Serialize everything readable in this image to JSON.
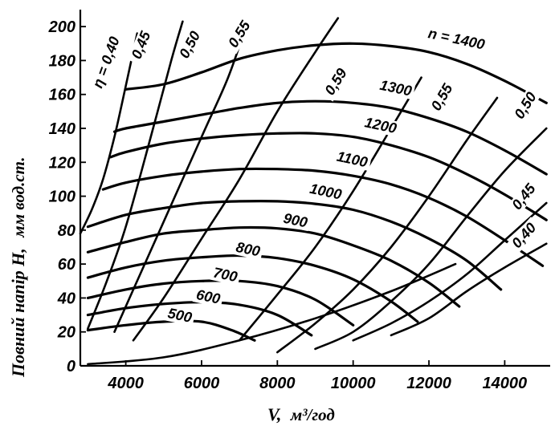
{
  "chart_data": {
    "type": "line",
    "title": "",
    "ylabel": "Повний напір H,",
    "ylabel_unit": "мм вод.ст.",
    "xlabel": "V,",
    "xlabel_unit": "м³/год",
    "xlim": [
      2800,
      15200
    ],
    "ylim": [
      0,
      210
    ],
    "x_ticks": [
      4000,
      6000,
      8000,
      10000,
      12000,
      14000
    ],
    "x_tick_labels": [
      "4000",
      "6000",
      "8000",
      "10000",
      "12000",
      "14000"
    ],
    "y_ticks": [
      0,
      20,
      40,
      60,
      80,
      100,
      120,
      140,
      160,
      180,
      200
    ],
    "y_tick_labels": [
      "0",
      "20",
      "40",
      "60",
      "80",
      "100",
      "120",
      "140",
      "160",
      "180",
      "200"
    ],
    "grid": false,
    "speed_curves": [
      {
        "label": "500",
        "points": [
          [
            3000,
            21
          ],
          [
            4000,
            24
          ],
          [
            5000,
            26
          ],
          [
            6000,
            26
          ],
          [
            6800,
            21
          ],
          [
            7400,
            15
          ]
        ],
        "label_at": [
          5400,
          27
        ]
      },
      {
        "label": "600",
        "points": [
          [
            3000,
            30
          ],
          [
            4000,
            34
          ],
          [
            5000,
            36.5
          ],
          [
            6000,
            37.5
          ],
          [
            7000,
            36
          ],
          [
            8000,
            30
          ],
          [
            8900,
            18
          ]
        ],
        "label_at": [
          6150,
          38
        ]
      },
      {
        "label": "700",
        "points": [
          [
            3000,
            40
          ],
          [
            4000,
            45
          ],
          [
            5000,
            48.5
          ],
          [
            6000,
            50
          ],
          [
            7000,
            50
          ],
          [
            8000,
            47
          ],
          [
            9000,
            39
          ],
          [
            10000,
            24
          ]
        ],
        "label_at": [
          6600,
          51
        ]
      },
      {
        "label": "800",
        "points": [
          [
            3000,
            52
          ],
          [
            4000,
            58
          ],
          [
            5000,
            62
          ],
          [
            6000,
            64
          ],
          [
            7000,
            65
          ],
          [
            8000,
            63.5
          ],
          [
            9000,
            59
          ],
          [
            10000,
            51
          ],
          [
            11000,
            38
          ],
          [
            11700,
            26
          ]
        ],
        "label_at": [
          7200,
          66
        ]
      },
      {
        "label": "900",
        "points": [
          [
            3000,
            67
          ],
          [
            4000,
            73
          ],
          [
            5000,
            78
          ],
          [
            6000,
            80
          ],
          [
            7000,
            81.5
          ],
          [
            8000,
            81
          ],
          [
            9000,
            78
          ],
          [
            10000,
            71
          ],
          [
            11000,
            62
          ],
          [
            12000,
            49
          ],
          [
            12800,
            35
          ]
        ],
        "label_at": [
          8450,
          83
        ]
      },
      {
        "label": "1000",
        "points": [
          [
            3000,
            82
          ],
          [
            4000,
            89
          ],
          [
            5000,
            93
          ],
          [
            6000,
            96
          ],
          [
            7000,
            97
          ],
          [
            8000,
            97
          ],
          [
            9000,
            95.5
          ],
          [
            10000,
            92
          ],
          [
            11000,
            85
          ],
          [
            12000,
            75
          ],
          [
            13000,
            62
          ],
          [
            13900,
            45
          ]
        ],
        "label_at": [
          9250,
          100
        ]
      },
      {
        "label": "1100",
        "points": [
          [
            3400,
            104
          ],
          [
            4000,
            108
          ],
          [
            5000,
            112
          ],
          [
            6000,
            114.5
          ],
          [
            7000,
            116
          ],
          [
            8000,
            116
          ],
          [
            9000,
            115
          ],
          [
            10000,
            112
          ],
          [
            11000,
            107
          ],
          [
            12000,
            99
          ],
          [
            13000,
            88
          ],
          [
            14000,
            74
          ],
          [
            15000,
            59
          ]
        ],
        "label_at": [
          9950,
          119
        ]
      },
      {
        "label": "1200",
        "points": [
          [
            3600,
            123
          ],
          [
            4000,
            126
          ],
          [
            5000,
            131
          ],
          [
            6000,
            134
          ],
          [
            7000,
            136
          ],
          [
            8000,
            137
          ],
          [
            9000,
            137
          ],
          [
            10000,
            135
          ],
          [
            11000,
            130
          ],
          [
            12000,
            123
          ],
          [
            13000,
            113
          ],
          [
            14000,
            101
          ],
          [
            15100,
            86
          ]
        ],
        "label_at": [
          10700,
          139
        ]
      },
      {
        "label": "1300",
        "points": [
          [
            3700,
            138
          ],
          [
            4000,
            140
          ],
          [
            5000,
            144
          ],
          [
            6000,
            148
          ],
          [
            7000,
            152
          ],
          [
            8000,
            155
          ],
          [
            9000,
            156
          ],
          [
            10000,
            155
          ],
          [
            11000,
            152
          ],
          [
            12000,
            146
          ],
          [
            13000,
            138
          ],
          [
            14000,
            127
          ],
          [
            15100,
            113
          ]
        ],
        "label_at": [
          11100,
          161
        ]
      },
      {
        "label": "n = 1400",
        "points": [
          [
            4000,
            163
          ],
          [
            5000,
            166
          ],
          [
            6000,
            173
          ],
          [
            7000,
            181
          ],
          [
            8000,
            186
          ],
          [
            9000,
            189
          ],
          [
            10000,
            190
          ],
          [
            11000,
            188.5
          ],
          [
            12000,
            185
          ],
          [
            13000,
            178
          ],
          [
            14000,
            168
          ],
          [
            15100,
            155
          ]
        ],
        "label_at": [
          12700,
          190
        ]
      }
    ],
    "efficiency_curves": [
      {
        "label": "η = 0,40",
        "points": [
          [
            2800,
            78
          ],
          [
            3100,
            92
          ],
          [
            3400,
            110
          ],
          [
            3700,
            135
          ],
          [
            4000,
            165
          ],
          [
            4300,
            196
          ]
        ],
        "label_at": [
          3600,
          178
        ]
      },
      {
        "label": "0,45",
        "points": [
          [
            3000,
            22
          ],
          [
            3500,
            50
          ],
          [
            4000,
            82
          ],
          [
            4600,
            130
          ],
          [
            5200,
            180
          ],
          [
            5500,
            203
          ]
        ],
        "label_at": [
          4520,
          188
        ]
      },
      {
        "label": "0,50",
        "points": [
          [
            3700,
            20
          ],
          [
            4200,
            45
          ],
          [
            5000,
            85
          ],
          [
            6000,
            135
          ],
          [
            6700,
            170
          ],
          [
            7200,
            202
          ]
        ],
        "label_at": [
          5800,
          188
        ]
      },
      {
        "label": "0,55",
        "points": [
          [
            4200,
            15
          ],
          [
            5000,
            40
          ],
          [
            6000,
            75
          ],
          [
            7000,
            110
          ],
          [
            8000,
            150
          ],
          [
            9000,
            185
          ],
          [
            9600,
            205
          ]
        ],
        "label_at": [
          7100,
          194
        ]
      },
      {
        "label": "0,59",
        "points": [
          [
            7000,
            15
          ],
          [
            8000,
            42
          ],
          [
            9000,
            70
          ],
          [
            10000,
            103
          ],
          [
            11000,
            140
          ],
          [
            11800,
            170
          ]
        ],
        "label_at": [
          9650,
          166
        ]
      },
      {
        "label": "0,55",
        "points": [
          [
            8000,
            8
          ],
          [
            9000,
            25
          ],
          [
            10000,
            45
          ],
          [
            11000,
            70
          ],
          [
            12000,
            100
          ],
          [
            13000,
            133
          ],
          [
            13800,
            158
          ]
        ],
        "label_at": [
          12450,
          157
        ]
      },
      {
        "label": "0,50",
        "points": [
          [
            9000,
            10
          ],
          [
            10000,
            20
          ],
          [
            11000,
            38
          ],
          [
            12000,
            60
          ],
          [
            13000,
            88
          ],
          [
            14000,
            115
          ],
          [
            15100,
            140
          ]
        ],
        "label_at": [
          14650,
          152
        ]
      },
      {
        "label": "0,45",
        "points": [
          [
            10000,
            15
          ],
          [
            11000,
            25
          ],
          [
            12000,
            38
          ],
          [
            13000,
            54
          ],
          [
            14000,
            74
          ],
          [
            15100,
            96
          ]
        ],
        "label_at": [
          14600,
          98
        ]
      },
      {
        "label": "0,40",
        "points": [
          [
            11000,
            18
          ],
          [
            12000,
            28
          ],
          [
            13000,
            44
          ],
          [
            14000,
            58
          ],
          [
            15100,
            72
          ]
        ],
        "label_at": [
          14600,
          75
        ]
      }
    ],
    "system_curve": {
      "points": [
        [
          3000,
          1
        ],
        [
          5000,
          5
        ],
        [
          7000,
          15
        ],
        [
          9000,
          28
        ],
        [
          11000,
          44
        ],
        [
          12700,
          60
        ]
      ]
    }
  }
}
